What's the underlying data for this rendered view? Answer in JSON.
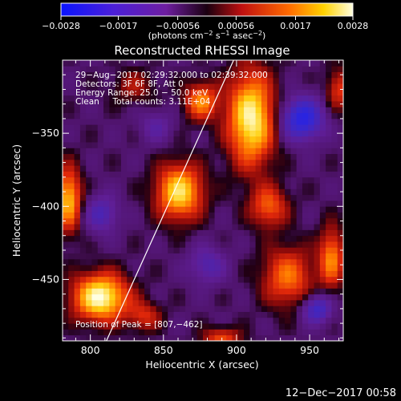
{
  "chart_data": {
    "type": "heatmap",
    "title": "Reconstructed RHESSI Image",
    "xlabel": "Heliocentric X (arcsec)",
    "ylabel": "Heliocentric Y (arcsec)",
    "xlim": [
      781,
      973
    ],
    "ylim": [
      -492,
      -300
    ],
    "xticks": [
      800,
      850,
      900,
      950
    ],
    "xtick_labels": [
      "800",
      "850",
      "900",
      "950"
    ],
    "yticks": [
      -350,
      -400,
      -450
    ],
    "ytick_labels": [
      "−350",
      "−400",
      "−450"
    ],
    "colorbar": {
      "range": [
        -0.0028,
        0.0028
      ],
      "tick_values": [
        -0.0028,
        -0.0017,
        -0.00056,
        0.00056,
        0.0017,
        0.0028
      ],
      "tick_labels": [
        "−0.0028",
        "−0.0017",
        "−0.00056",
        "0.00056",
        "0.0017",
        "0.0028"
      ],
      "unit_parts": [
        "(photons cm",
        "−2",
        " s",
        "−1",
        " asec",
        "−2",
        ")"
      ]
    },
    "info_lines": [
      "29−Aug−2017 02:29:32.000 to 02:39:32.000",
      "Detectors: 3F 6F 8F, Att 0",
      "Energy Range: 25.0 − 50.0 keV",
      "Clean     Total counts: 3.11E+04"
    ],
    "peak_text": "Position of Peak = [807,−462]",
    "limb_line": [
      [
        811,
        -492
      ],
      [
        898,
        -300
      ]
    ],
    "sources": [
      {
        "x": 807,
        "y": -462,
        "sx": 13,
        "sy": 11,
        "amp": 1.0
      },
      {
        "x": 910,
        "y": -340,
        "sx": 11,
        "sy": 22,
        "amp": 0.95
      },
      {
        "x": 861,
        "y": -390,
        "sx": 11,
        "sy": 13,
        "amp": 0.85
      },
      {
        "x": 785,
        "y": -395,
        "sx": 6,
        "sy": 15,
        "amp": 0.75
      },
      {
        "x": 876,
        "y": -328,
        "sx": 8,
        "sy": 9,
        "amp": 0.6
      },
      {
        "x": 935,
        "y": -448,
        "sx": 12,
        "sy": 14,
        "amp": 0.55
      },
      {
        "x": 922,
        "y": -400,
        "sx": 9,
        "sy": 10,
        "amp": 0.5
      },
      {
        "x": 965,
        "y": -435,
        "sx": 6,
        "sy": 14,
        "amp": 0.6
      },
      {
        "x": 890,
        "y": -490,
        "sx": 9,
        "sy": 5,
        "amp": 0.45
      },
      {
        "x": 837,
        "y": -475,
        "sx": 8,
        "sy": 7,
        "amp": 0.35
      },
      {
        "x": 970,
        "y": -320,
        "sx": 6,
        "sy": 10,
        "amp": 0.4
      },
      {
        "x": 830,
        "y": -318,
        "sx": 10,
        "sy": 8,
        "amp": 0.25
      }
    ],
    "negatives": [
      {
        "x": 945,
        "y": -340,
        "sx": 10,
        "sy": 10,
        "amp": 0.75
      },
      {
        "x": 808,
        "y": -405,
        "sx": 8,
        "sy": 9,
        "amp": 0.4
      },
      {
        "x": 955,
        "y": -470,
        "sx": 7,
        "sy": 7,
        "amp": 0.55
      },
      {
        "x": 880,
        "y": -440,
        "sx": 9,
        "sy": 9,
        "amp": 0.35
      },
      {
        "x": 845,
        "y": -345,
        "sx": 8,
        "sy": 8,
        "amp": 0.25
      }
    ]
  },
  "footer": {
    "timestamp": "12−Dec−2017 00:58"
  }
}
